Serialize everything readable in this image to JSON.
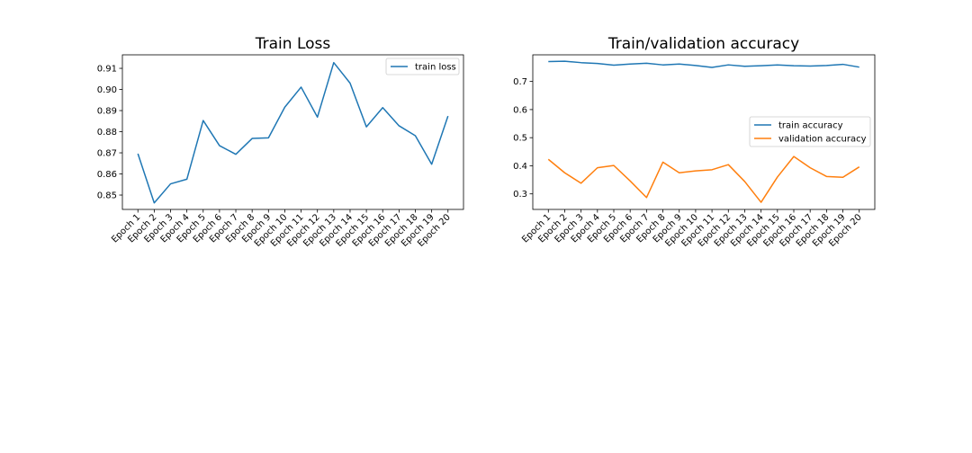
{
  "chart_data": [
    {
      "type": "line",
      "title": "Train Loss",
      "xlabel": "",
      "ylabel": "",
      "categories": [
        "Epoch 1",
        "Epoch 2",
        "Epoch 3",
        "Epoch 4",
        "Epoch 5",
        "Epoch 6",
        "Epoch 7",
        "Epoch 8",
        "Epoch 9",
        "Epoch 10",
        "Epoch 11",
        "Epoch 12",
        "Epoch 13",
        "Epoch 14",
        "Epoch 15",
        "Epoch 16",
        "Epoch 17",
        "Epoch 18",
        "Epoch 19",
        "Epoch 20"
      ],
      "ylim": [
        0.8432,
        0.9164
      ],
      "yticks": [
        0.85,
        0.86,
        0.87,
        0.88,
        0.89,
        0.9,
        0.91
      ],
      "ytick_labels": [
        "0.85",
        "0.86",
        "0.87",
        "0.88",
        "0.89",
        "0.90",
        "0.91"
      ],
      "grid": false,
      "legend": "upper right",
      "series": [
        {
          "name": "train loss",
          "color": "#1f77b4",
          "values": [
            0.8696,
            0.8463,
            0.8553,
            0.8575,
            0.8853,
            0.8734,
            0.8693,
            0.8768,
            0.8771,
            0.8916,
            0.9011,
            0.8869,
            0.9127,
            0.903,
            0.8823,
            0.8914,
            0.8828,
            0.8781,
            0.8646,
            0.8874
          ]
        }
      ]
    },
    {
      "type": "line",
      "title": "Train/validation accuracy",
      "xlabel": "",
      "ylabel": "",
      "categories": [
        "Epoch 1",
        "Epoch 2",
        "Epoch 3",
        "Epoch 4",
        "Epoch 5",
        "Epoch 6",
        "Epoch 7",
        "Epoch 8",
        "Epoch 9",
        "Epoch 10",
        "Epoch 11",
        "Epoch 12",
        "Epoch 13",
        "Epoch 14",
        "Epoch 15",
        "Epoch 16",
        "Epoch 17",
        "Epoch 18",
        "Epoch 19",
        "Epoch 20"
      ],
      "ylim": [
        0.2447,
        0.7948
      ],
      "yticks": [
        0.3,
        0.4,
        0.5,
        0.6,
        0.7
      ],
      "ytick_labels": [
        "0.3",
        "0.4",
        "0.5",
        "0.6",
        "0.7"
      ],
      "grid": false,
      "legend": "center right",
      "series": [
        {
          "name": "train accuracy",
          "color": "#1f77b4",
          "values": [
            0.771,
            0.772,
            0.767,
            0.764,
            0.758,
            0.762,
            0.765,
            0.759,
            0.762,
            0.757,
            0.75,
            0.759,
            0.754,
            0.756,
            0.759,
            0.756,
            0.755,
            0.757,
            0.761,
            0.751
          ]
        },
        {
          "name": "validation accuracy",
          "color": "#ff7f0e",
          "values": [
            0.423,
            0.375,
            0.338,
            0.393,
            0.401,
            0.346,
            0.287,
            0.413,
            0.375,
            0.382,
            0.386,
            0.404,
            0.344,
            0.27,
            0.36,
            0.433,
            0.393,
            0.362,
            0.359,
            0.396
          ]
        }
      ]
    }
  ]
}
